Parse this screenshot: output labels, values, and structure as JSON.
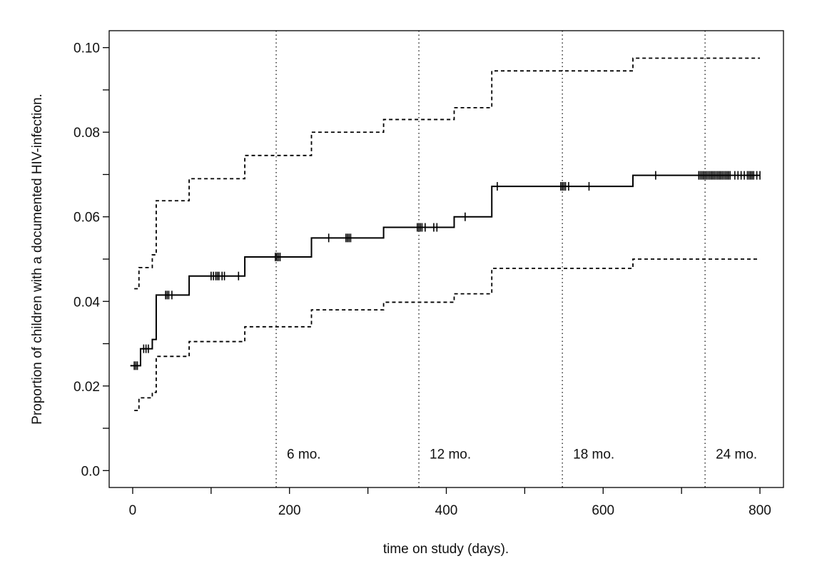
{
  "chart_data": {
    "type": "line",
    "title": "",
    "xlabel": "time on study (days).",
    "ylabel": "Proportion of children with a documented HIV-infection.",
    "xlim": [
      -30,
      830
    ],
    "ylim": [
      -0.004,
      0.104
    ],
    "x_ticks": [
      0,
      100,
      200,
      300,
      400,
      500,
      600,
      700,
      800
    ],
    "x_tick_labels": [
      "0",
      "200",
      "400",
      "600",
      "800"
    ],
    "x_tick_label_values": [
      0,
      200,
      400,
      600,
      800
    ],
    "y_ticks": [
      0.0,
      0.01,
      0.02,
      0.03,
      0.04,
      0.05,
      0.06,
      0.07,
      0.08,
      0.09,
      0.1
    ],
    "y_tick_labels": [
      "0.0",
      "0.02",
      "0.04",
      "0.06",
      "0.08",
      "0.10"
    ],
    "y_tick_label_values": [
      0.0,
      0.02,
      0.04,
      0.06,
      0.08,
      0.1
    ],
    "grid": false,
    "reference_lines": [
      {
        "x": 183,
        "label": "6 mo."
      },
      {
        "x": 365,
        "label": "12 mo."
      },
      {
        "x": 548,
        "label": "18 mo."
      },
      {
        "x": 730,
        "label": "24 mo."
      }
    ],
    "reference_label_y": 0.004,
    "series": [
      {
        "style": "solid",
        "steps": [
          [
            -3,
            0.0248
          ],
          [
            10,
            0.0288
          ],
          [
            25,
            0.031
          ],
          [
            30,
            0.0415
          ],
          [
            72,
            0.046
          ],
          [
            143,
            0.0505
          ],
          [
            228,
            0.055
          ],
          [
            320,
            0.0575
          ],
          [
            410,
            0.06
          ],
          [
            458,
            0.0672
          ],
          [
            638,
            0.0698
          ],
          [
            800,
            0.0698
          ]
        ],
        "censor_marks": [
          2,
          4,
          6,
          14,
          17,
          20,
          42,
          44,
          46,
          50,
          100,
          103,
          106,
          108,
          110,
          114,
          117,
          135,
          182,
          184,
          186,
          188,
          250,
          272,
          274,
          276,
          278,
          363,
          365,
          367,
          369,
          373,
          384,
          388,
          424,
          465,
          546,
          548,
          550,
          552,
          556,
          582,
          667,
          722,
          724,
          726,
          728,
          730,
          732,
          734,
          736,
          738,
          740,
          742,
          744,
          746,
          748,
          750,
          752,
          754,
          756,
          758,
          760,
          762,
          768,
          772,
          776,
          780,
          784,
          786,
          788,
          790,
          792,
          796,
          800
        ]
      },
      {
        "style": "dashed",
        "steps": [
          [
            2,
            0.043
          ],
          [
            8,
            0.048
          ],
          [
            25,
            0.051
          ],
          [
            30,
            0.0638
          ],
          [
            72,
            0.069
          ],
          [
            143,
            0.0745
          ],
          [
            228,
            0.08
          ],
          [
            320,
            0.083
          ],
          [
            410,
            0.0858
          ],
          [
            458,
            0.0945
          ],
          [
            638,
            0.0975
          ],
          [
            800,
            0.0975
          ]
        ]
      },
      {
        "style": "dashed",
        "steps": [
          [
            2,
            0.0142
          ],
          [
            8,
            0.0172
          ],
          [
            25,
            0.0185
          ],
          [
            30,
            0.027
          ],
          [
            72,
            0.0305
          ],
          [
            143,
            0.034
          ],
          [
            228,
            0.038
          ],
          [
            320,
            0.0398
          ],
          [
            410,
            0.0418
          ],
          [
            458,
            0.0478
          ],
          [
            638,
            0.05
          ],
          [
            800,
            0.05
          ]
        ]
      }
    ]
  }
}
